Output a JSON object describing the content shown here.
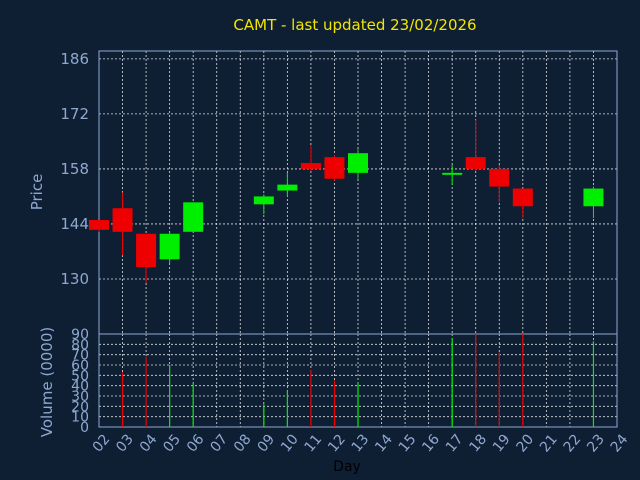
{
  "title": "CAMT - last updated 23/02/2026",
  "chart_data": [
    {
      "type": "candlestick",
      "ylabel": "Price",
      "ylim": [
        116,
        188
      ],
      "yticks": [
        130,
        144,
        158,
        172,
        186
      ],
      "grid": true,
      "colors": {
        "up": "#00ee00",
        "down": "#ee0000"
      },
      "candles": [
        {
          "day": 2,
          "open": 145.0,
          "high": 145.0,
          "low": 142.0,
          "close": 142.5
        },
        {
          "day": 3,
          "open": 148.0,
          "high": 152.0,
          "low": 136.0,
          "close": 142.0
        },
        {
          "day": 4,
          "open": 141.5,
          "high": 141.5,
          "low": 129.0,
          "close": 133.0
        },
        {
          "day": 5,
          "open": 135.0,
          "high": 142.0,
          "low": 134.0,
          "close": 141.5
        },
        {
          "day": 6,
          "open": 142.0,
          "high": 149.5,
          "low": 142.0,
          "close": 149.5
        },
        {
          "day": 9,
          "open": 149.0,
          "high": 151.5,
          "low": 146.5,
          "close": 151.0
        },
        {
          "day": 10,
          "open": 152.5,
          "high": 157.0,
          "low": 151.0,
          "close": 154.0
        },
        {
          "day": 11,
          "open": 159.5,
          "high": 164.0,
          "low": 157.5,
          "close": 158.0
        },
        {
          "day": 12,
          "open": 161.0,
          "high": 161.5,
          "low": 155.0,
          "close": 155.5
        },
        {
          "day": 13,
          "open": 157.0,
          "high": 163.0,
          "low": 155.5,
          "close": 162.0
        },
        {
          "day": 17,
          "open": 156.5,
          "high": 159.0,
          "low": 154.0,
          "close": 157.0
        },
        {
          "day": 18,
          "open": 161.0,
          "high": 170.5,
          "low": 157.5,
          "close": 158.0
        },
        {
          "day": 19,
          "open": 158.0,
          "high": 159.0,
          "low": 149.5,
          "close": 153.5
        },
        {
          "day": 20,
          "open": 153.0,
          "high": 153.0,
          "low": 145.5,
          "close": 148.5
        },
        {
          "day": 23,
          "open": 148.5,
          "high": 153.5,
          "low": 145.5,
          "close": 153.0
        }
      ]
    },
    {
      "type": "bar",
      "ylabel": "Volume (0000)",
      "ylim": [
        0,
        90
      ],
      "yticks": [
        0,
        10,
        20,
        30,
        40,
        50,
        60,
        70,
        80,
        90
      ],
      "grid": true,
      "volumes": [
        {
          "day": 3,
          "value": 53,
          "direction": "down"
        },
        {
          "day": 4,
          "value": 68,
          "direction": "down"
        },
        {
          "day": 5,
          "value": 60,
          "direction": "up"
        },
        {
          "day": 6,
          "value": 42,
          "direction": "up"
        },
        {
          "day": 9,
          "value": 22,
          "direction": "up"
        },
        {
          "day": 10,
          "value": 35,
          "direction": "up"
        },
        {
          "day": 11,
          "value": 55,
          "direction": "down"
        },
        {
          "day": 12,
          "value": 45,
          "direction": "down"
        },
        {
          "day": 13,
          "value": 43,
          "direction": "up"
        },
        {
          "day": 17,
          "value": 86,
          "direction": "up"
        },
        {
          "day": 18,
          "value": 90,
          "direction": "down"
        },
        {
          "day": 19,
          "value": 72,
          "direction": "down"
        },
        {
          "day": 20,
          "value": 90,
          "direction": "down"
        },
        {
          "day": 23,
          "value": 83,
          "direction": "up"
        }
      ],
      "xlabel": "Day",
      "xticks": [
        "02",
        "03",
        "04",
        "05",
        "06",
        "07",
        "08",
        "09",
        "10",
        "11",
        "12",
        "13",
        "14",
        "15",
        "16",
        "17",
        "18",
        "19",
        "20",
        "21",
        "22",
        "23",
        "24"
      ]
    }
  ]
}
